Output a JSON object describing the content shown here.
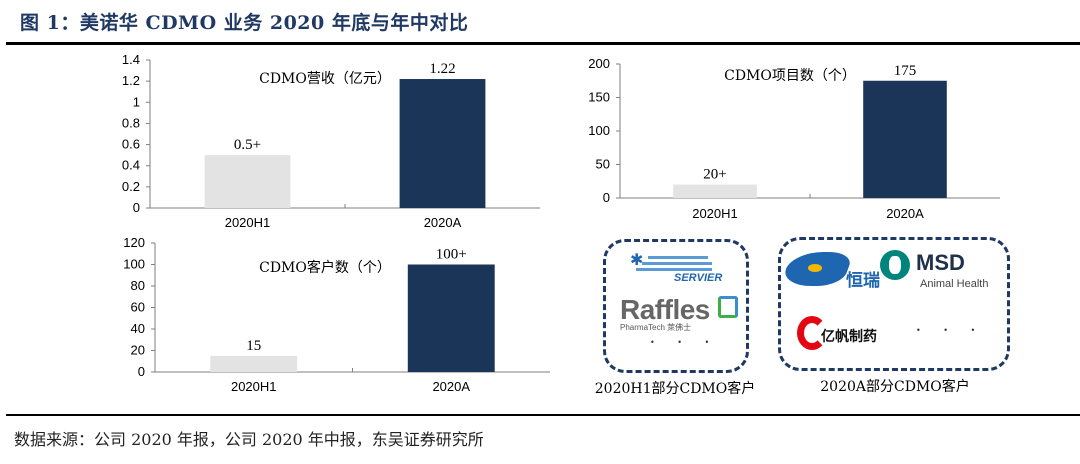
{
  "figure": {
    "title": "图 1：美诺华 CDMO 业务 2020 年底与年中对比",
    "source": "数据来源：公司 2020 年报，公司 2020 年中报，东吴证券研究所"
  },
  "colors": {
    "bar_h1": "#e3e3e3",
    "bar_a": "#1a3558",
    "title": "#1f3864",
    "dashed_box": "#1f3864"
  },
  "chart_data": [
    {
      "type": "bar",
      "title": "CDMO营收（亿元）",
      "categories": [
        "2020H1",
        "2020A"
      ],
      "values": [
        0.5,
        1.22
      ],
      "data_labels": [
        "0.5+",
        "1.22"
      ],
      "ylim": [
        0,
        1.4
      ],
      "yticks": [
        "0",
        "0.2",
        "0.4",
        "0.6",
        "0.8",
        "1",
        "1.2",
        "1.4"
      ],
      "ytick_values": [
        0,
        0.2,
        0.4,
        0.6,
        0.8,
        1.0,
        1.2,
        1.4
      ],
      "xlabel": "",
      "ylabel": "",
      "grid": false
    },
    {
      "type": "bar",
      "title": "CDMO项目数（个）",
      "categories": [
        "2020H1",
        "2020A"
      ],
      "values": [
        20,
        175
      ],
      "data_labels": [
        "20+",
        "175"
      ],
      "ylim": [
        0,
        200
      ],
      "yticks": [
        "0",
        "50",
        "100",
        "150",
        "200"
      ],
      "ytick_values": [
        0,
        50,
        100,
        150,
        200
      ],
      "xlabel": "",
      "ylabel": "",
      "grid": false
    },
    {
      "type": "bar",
      "title": "CDMO客户数（个）",
      "categories": [
        "2020H1",
        "2020A"
      ],
      "values": [
        15,
        100
      ],
      "data_labels": [
        "15",
        "100+"
      ],
      "ylim": [
        0,
        120
      ],
      "yticks": [
        "0",
        "20",
        "40",
        "60",
        "80",
        "100",
        "120"
      ],
      "ytick_values": [
        0,
        20,
        40,
        60,
        80,
        100,
        120
      ],
      "xlabel": "",
      "ylabel": "",
      "grid": false
    }
  ],
  "customers": {
    "h1": {
      "caption": "2020H1部分CDMO客户",
      "logos": [
        "SERVIER",
        "Raffles",
        "PharmaTech 萊佛士"
      ],
      "more": "• • •"
    },
    "a": {
      "caption": "2020A部分CDMO客户",
      "logos": [
        "恒瑞",
        "MSD",
        "Animal Health",
        "亿帆制药"
      ],
      "more": "• • •"
    }
  }
}
